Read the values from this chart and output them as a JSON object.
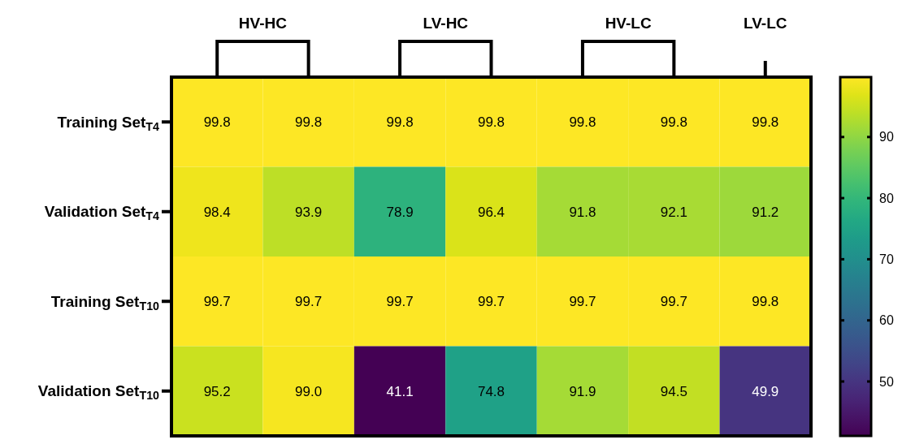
{
  "chart_data": {
    "type": "heatmap",
    "categories": [
      null,
      null,
      null,
      null,
      null,
      null,
      null
    ],
    "y_categories": [
      "Training Set$_{T4}$",
      "Validation Set$_{T4}$",
      "Training Set$_{T10}$",
      "Validation Set$_{T10}$"
    ],
    "cells": [
      [
        99.8,
        99.8,
        99.8,
        99.8,
        99.8,
        99.8,
        99.8
      ],
      [
        98.4,
        93.9,
        78.9,
        96.4,
        91.8,
        92.1,
        91.2
      ],
      [
        99.7,
        99.7,
        99.7,
        99.7,
        99.7,
        99.7,
        99.8
      ],
      [
        95.2,
        99.0,
        41.1,
        74.8,
        91.9,
        94.5,
        49.9
      ]
    ],
    "cell_labels": [
      [
        "99.8",
        "99.8",
        "99.8",
        "99.8",
        "99.8",
        "99.8",
        "99.8"
      ],
      [
        "98.4",
        "93.9",
        "78.9",
        "96.4",
        "91.8",
        "92.1",
        "91.2"
      ],
      [
        "99.7",
        "99.7",
        "99.7",
        "99.7",
        "99.7",
        "99.7",
        "99.8"
      ],
      [
        "95.2",
        "99.0",
        "41.1",
        "74.8",
        "91.9",
        "94.5",
        "49.9"
      ]
    ],
    "clim": [
      41.1,
      99.8
    ],
    "cticks": [
      50,
      60,
      70,
      80,
      90
    ],
    "annotations": [
      "HV-HC",
      "LV-HC",
      "HV-LC",
      "LV-LC"
    ]
  }
}
